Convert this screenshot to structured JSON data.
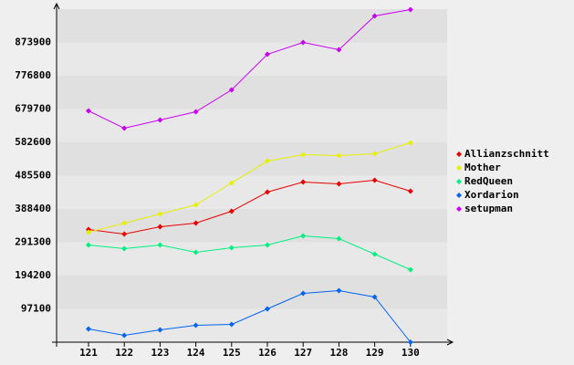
{
  "chart_data": {
    "type": "line",
    "categories": [
      "121",
      "122",
      "123",
      "124",
      "125",
      "126",
      "127",
      "128",
      "129",
      "130"
    ],
    "series": [
      {
        "name": "Allianzschnitt",
        "color": "#e60000",
        "values": [
          328500,
          315200,
          336500,
          347100,
          381700,
          437600,
          466800,
          461500,
          472200,
          440200
        ]
      },
      {
        "name": "Mother",
        "color": "#e6f000",
        "values": [
          320500,
          347100,
          373700,
          400300,
          464200,
          528000,
          546600,
          544000,
          549300,
          581200
        ]
      },
      {
        "name": "RedQueen",
        "color": "#00f080",
        "values": [
          283300,
          272700,
          283300,
          262000,
          275300,
          283300,
          309900,
          301900,
          256700,
          211500
        ]
      },
      {
        "name": "Xordarion",
        "color": "#0064f0",
        "values": [
          38600,
          20000,
          35900,
          49200,
          51900,
          97100,
          142300,
          150300,
          131700,
          0
        ]
      },
      {
        "name": "setupman",
        "color": "#c800f0",
        "values": [
          674400,
          623800,
          647700,
          671700,
          735500,
          839300,
          873900,
          852600,
          951000,
          969600
        ]
      }
    ],
    "ylim": [
      0,
      971000
    ],
    "yticks": [
      97100,
      194200,
      291300,
      388400,
      485500,
      582600,
      679700,
      776800,
      873900
    ],
    "grid": true
  }
}
